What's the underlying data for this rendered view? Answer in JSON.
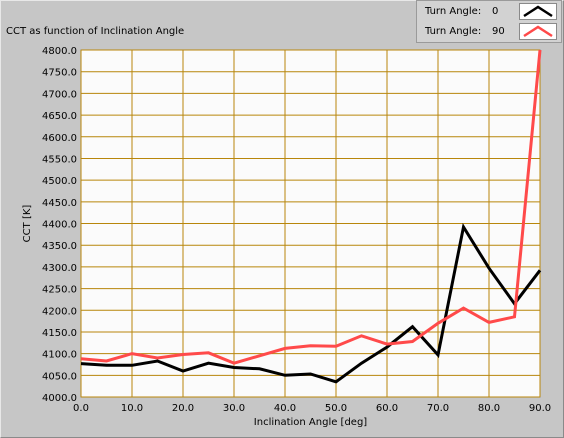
{
  "chart_data": {
    "type": "line",
    "title": "CCT as function of Inclination Angle",
    "xlabel": "Inclination Angle [deg]",
    "ylabel": "CCT [K]",
    "xlim": [
      0,
      90
    ],
    "ylim": [
      4000,
      4800
    ],
    "xticks": [
      0,
      10,
      20,
      30,
      40,
      50,
      60,
      70,
      80,
      90
    ],
    "xtick_labels": [
      "0.0",
      "10.0",
      "20.0",
      "30.0",
      "40.0",
      "50.0",
      "60.0",
      "70.0",
      "80.0",
      "90.0"
    ],
    "yticks": [
      4000,
      4050,
      4100,
      4150,
      4200,
      4250,
      4300,
      4350,
      4400,
      4450,
      4500,
      4550,
      4600,
      4650,
      4700,
      4750,
      4800
    ],
    "ytick_labels": [
      "4000.0",
      "4050.0",
      "4100.0",
      "4150.0",
      "4200.0",
      "4250.0",
      "4300.0",
      "4350.0",
      "4400.0",
      "4450.0",
      "4500.0",
      "4550.0",
      "4600.0",
      "4650.0",
      "4700.0",
      "4750.0",
      "4800.0"
    ],
    "grid": true,
    "legend_position": "top-right",
    "legend_label": "Turn Angle:",
    "colors": {
      "plot_bg": "#fbfbfb",
      "grid": "#b8860b",
      "frame": "#c6c6c6"
    },
    "x": [
      0,
      5,
      10,
      15,
      20,
      25,
      30,
      35,
      40,
      45,
      50,
      55,
      60,
      65,
      70,
      75,
      80,
      85,
      90
    ],
    "series": [
      {
        "name": "0",
        "color": "#000000",
        "values": [
          4077,
          4073,
          4073,
          4083,
          4060,
          4078,
          4068,
          4065,
          4050,
          4053,
          4035,
          4078,
          4115,
          4162,
          4097,
          4392,
          4297,
          4215,
          4292
        ]
      },
      {
        "name": "90",
        "color": "#ff4a4a",
        "values": [
          4088,
          4083,
          4100,
          4090,
          4098,
          4102,
          4078,
          4095,
          4112,
          4118,
          4117,
          4141,
          4122,
          4128,
          4170,
          4205,
          4172,
          4185,
          4800
        ]
      }
    ]
  }
}
